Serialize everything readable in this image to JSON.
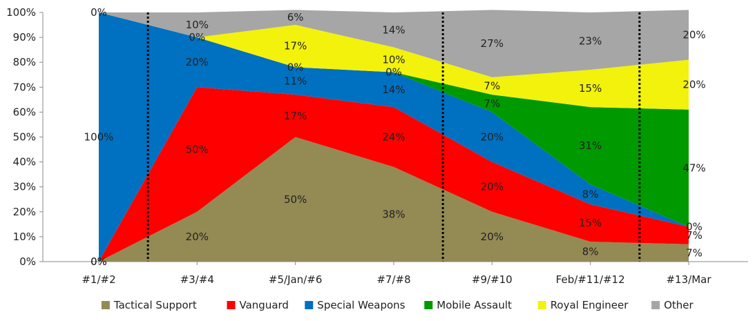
{
  "chart_data": {
    "type": "area",
    "stacked": true,
    "percent_stacked": true,
    "categories": [
      "#1/#2",
      "#3/#4",
      "#5/Jan/#6",
      "#7/#8",
      "#9/#10",
      "Feb/#11/#12",
      "#13/Mar"
    ],
    "series": [
      {
        "name": "Tactical Support",
        "color": "#948A54",
        "values": [
          0,
          20,
          50,
          38,
          20,
          8,
          7
        ]
      },
      {
        "name": "Vanguard",
        "color": "#FF0000",
        "values": [
          0,
          50,
          17,
          24,
          20,
          15,
          7
        ]
      },
      {
        "name": "Special Weapons",
        "color": "#0070C0",
        "values": [
          100,
          20,
          11,
          14,
          20,
          8,
          0
        ]
      },
      {
        "name": "Mobile Assault",
        "color": "#009900",
        "values": [
          0,
          0,
          0,
          0,
          7,
          31,
          47
        ]
      },
      {
        "name": "Royal Engineer",
        "color": "#F2F20D",
        "values": [
          0,
          0,
          17,
          10,
          7,
          15,
          20
        ]
      },
      {
        "name": "Other",
        "color": "#A6A6A6",
        "values": [
          0,
          10,
          6,
          14,
          27,
          23,
          20
        ]
      }
    ],
    "data_labels": [
      [
        "0%",
        "20%",
        "50%",
        "38%",
        "20%",
        "8%",
        "7%"
      ],
      [
        "0%",
        "50%",
        "17%",
        "24%",
        "20%",
        "15%",
        "7%"
      ],
      [
        "100%",
        "20%",
        "11%",
        "14%",
        "20%",
        "8%",
        "0%"
      ],
      [
        null,
        null,
        null,
        null,
        "7%",
        "31%",
        "47%"
      ],
      [
        null,
        null,
        "17%",
        "10%",
        "7%",
        "15%",
        "20%"
      ],
      [
        "0%",
        "10%",
        "6%",
        "14%",
        "27%",
        "23%",
        "20%"
      ]
    ],
    "extra_labels": [
      {
        "category": "#3/#4",
        "text": "0%"
      },
      {
        "category": "#5/Jan/#6",
        "text": "0%"
      },
      {
        "category": "#7/#8",
        "text": "0%"
      }
    ],
    "y_ticks": [
      "0%",
      "10%",
      "20%",
      "30%",
      "40%",
      "50%",
      "60%",
      "70%",
      "80%",
      "90%",
      "100%"
    ],
    "ylim": [
      0,
      100
    ],
    "separators_after_category_index": [
      0,
      3,
      5
    ],
    "legend_position": "bottom",
    "grid": false,
    "title": "",
    "xlabel": "",
    "ylabel": ""
  }
}
